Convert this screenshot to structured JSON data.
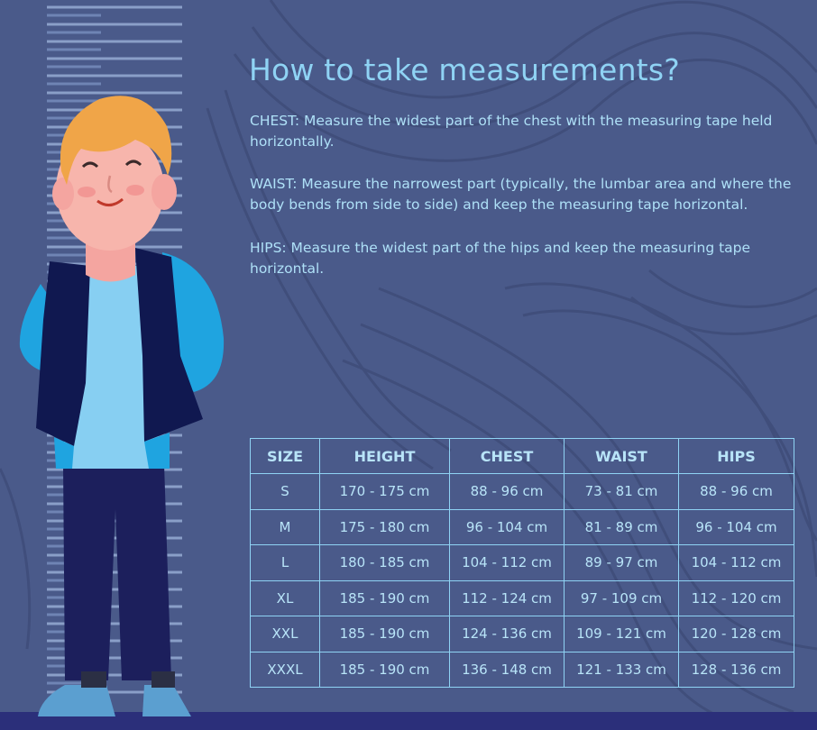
{
  "colors": {
    "background": "#4a5a8a",
    "accent": "#8fd3f4",
    "floor": "#2b2f7a"
  },
  "illustration": {
    "figure": "boy-standing-by-height-ruler-icon"
  },
  "title": "How to take measurements?",
  "instructions": {
    "chest": "CHEST: Measure the widest part of the chest with the measuring tape held horizontally.",
    "waist": "WAIST: Measure the narrowest part (typically, the lumbar area and where the body bends from side to side) and keep the measuring tape horizontal.",
    "hips": "HIPS: Measure the widest part of the hips and keep the measuring tape horizontal."
  },
  "table": {
    "headers": [
      "SIZE",
      "HEIGHT",
      "CHEST",
      "WAIST",
      "HIPS"
    ],
    "rows": [
      [
        "S",
        "170 - 175 cm",
        "88 - 96 cm",
        "73 - 81 cm",
        "88 - 96 cm"
      ],
      [
        "M",
        "175 - 180 cm",
        "96 - 104 cm",
        "81 - 89 cm",
        "96 - 104 cm"
      ],
      [
        "L",
        "180 - 185 cm",
        "104 - 112 cm",
        "89 - 97 cm",
        "104 - 112 cm"
      ],
      [
        "XL",
        "185 - 190 cm",
        "112 - 124 cm",
        "97 - 109 cm",
        "112 - 120 cm"
      ],
      [
        "XXL",
        "185 - 190 cm",
        "124 - 136 cm",
        "109 - 121 cm",
        "120 - 128 cm"
      ],
      [
        "XXXL",
        "185 - 190 cm",
        "136 - 148 cm",
        "121 - 133 cm",
        "128 - 136 cm"
      ]
    ]
  }
}
